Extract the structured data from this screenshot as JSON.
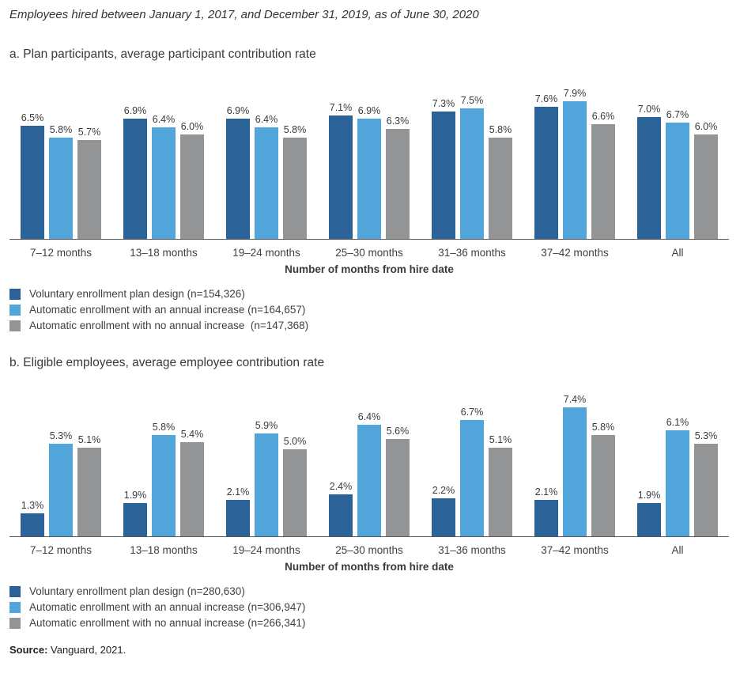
{
  "page": {
    "title": "Employees hired between January 1, 2017, and December 31, 2019, as of June 30, 2020",
    "source_label": "Source:",
    "source_text": " Vanguard, 2021."
  },
  "colors": {
    "voluntary": "#2b6398",
    "auto_annual_increase": "#51a5da",
    "auto_no_increase": "#939495",
    "axis_line": "#58595b"
  },
  "chart_data": [
    {
      "id": "a",
      "type": "bar",
      "heading": "a. Plan participants, average participant contribution rate",
      "categories": [
        "7–12 months",
        "13–18 months",
        "19–24 months",
        "25–30 months",
        "31–36 months",
        "37–42 months",
        "All"
      ],
      "xlabel": "Number of months from hire date",
      "value_suffix": "%",
      "ylim": [
        0,
        8.4
      ],
      "grid": false,
      "legend_position": "below",
      "series": [
        {
          "name": "Voluntary enrollment plan design (n=154,326)",
          "color": "#2b6398",
          "values": [
            6.5,
            6.9,
            6.9,
            7.1,
            7.3,
            7.6,
            7.0
          ]
        },
        {
          "name": "Automatic enrollment with an annual increase (n=164,657)",
          "color": "#51a5da",
          "values": [
            5.8,
            6.4,
            6.4,
            6.9,
            7.5,
            7.9,
            6.7
          ]
        },
        {
          "name": "Automatic enrollment with no annual increase  (n=147,368)",
          "color": "#939495",
          "values": [
            5.7,
            6.0,
            5.8,
            6.3,
            5.8,
            6.6,
            6.0
          ]
        }
      ]
    },
    {
      "id": "b",
      "type": "bar",
      "heading": "b. Eligible employees, average employee contribution rate",
      "categories": [
        "7–12 months",
        "13–18 months",
        "19–24 months",
        "25–30 months",
        "31–36 months",
        "37–42 months",
        "All"
      ],
      "xlabel": "Number of months from hire date",
      "value_suffix": "%",
      "ylim": [
        0,
        8.4
      ],
      "grid": false,
      "legend_position": "below",
      "series": [
        {
          "name": "Voluntary enrollment plan design (n=280,630)",
          "color": "#2b6398",
          "values": [
            1.3,
            1.9,
            2.1,
            2.4,
            2.2,
            2.1,
            1.9
          ]
        },
        {
          "name": "Automatic enrollment with an annual increase (n=306,947)",
          "color": "#51a5da",
          "values": [
            5.3,
            5.8,
            5.9,
            6.4,
            6.7,
            7.4,
            6.1
          ]
        },
        {
          "name": "Automatic enrollment with no annual increase (n=266,341)",
          "color": "#939495",
          "values": [
            5.1,
            5.4,
            5.0,
            5.6,
            5.1,
            5.8,
            5.3
          ]
        }
      ]
    }
  ]
}
